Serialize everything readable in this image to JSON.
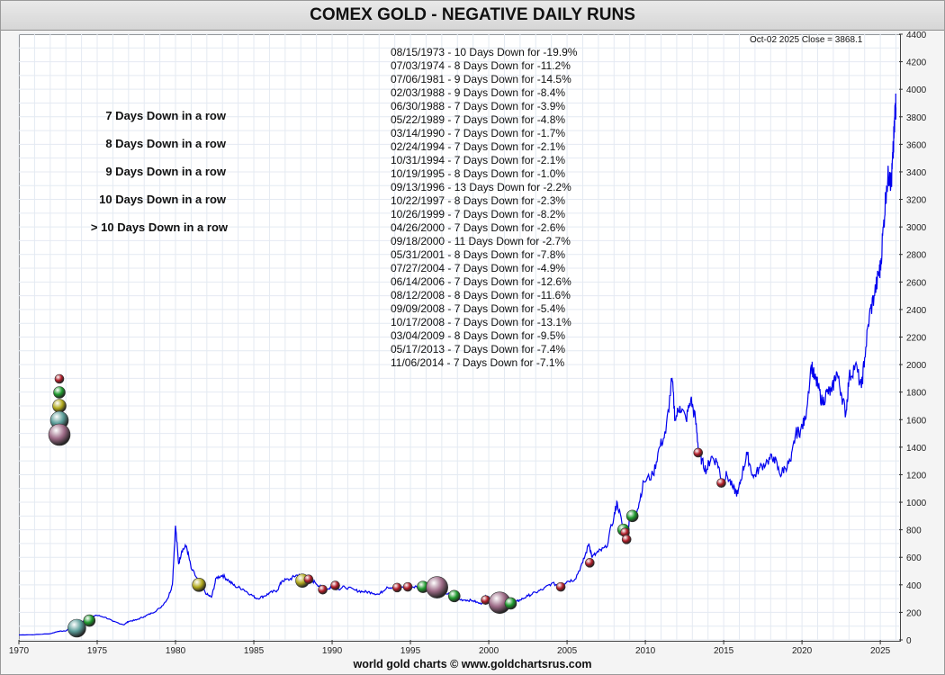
{
  "title": "COMEX GOLD - NEGATIVE DAILY RUNS",
  "close_info": "Oct-02  2025    Close = 3868.1",
  "footer": "world gold charts © www.goldchartsrus.com",
  "legend": [
    {
      "label": "7 Days Down in a row",
      "color": "#b01c28"
    },
    {
      "label": "8 Days Down in a row",
      "color": "#1f9a2e"
    },
    {
      "label": "9 Days Down in a row",
      "color": "#b0a81c"
    },
    {
      "label": "10 Days Down in a row",
      "color": "#5a9c98"
    },
    {
      "label": "> 10 Days Down in a row",
      "color": "#9c6a86"
    }
  ],
  "annotations": [
    "08/15/1973 - 10 Days Down for -19.9%",
    "07/03/1974 - 8 Days Down for -11.2%",
    "07/06/1981 - 9 Days Down for -14.5%",
    "02/03/1988 - 9 Days Down for -8.4%",
    "06/30/1988 - 7 Days Down for -3.9%",
    "05/22/1989 - 7 Days Down for -4.8%",
    "03/14/1990 - 7 Days Down for -1.7%",
    "02/24/1994 - 7 Days Down for -2.1%",
    "10/31/1994 - 7 Days Down for -2.1%",
    "10/19/1995 - 8 Days Down for -1.0%",
    "09/13/1996 - 13 Days Down for -2.2%",
    "10/22/1997 - 8 Days Down for -2.3%",
    "10/26/1999 - 7 Days Down for -8.2%",
    "04/26/2000 - 7 Days Down for -2.6%",
    "09/18/2000 - 11 Days Down for -2.7%",
    "05/31/2001 - 8 Days Down for -7.8%",
    "07/27/2004 - 7 Days Down for -4.9%",
    "06/14/2006 - 7 Days Down for -12.6%",
    "08/12/2008 - 8 Days Down for -11.6%",
    "09/09/2008 - 7 Days Down for -5.4%",
    "10/17/2008 - 7 Days Down for -13.1%",
    "03/04/2009 - 8 Days Down for -9.5%",
    "05/17/2013 - 7 Days Down for -7.4%",
    "11/06/2014 - 7 Days Down for -7.1%"
  ],
  "chart_data": {
    "type": "line",
    "title": "COMEX GOLD - NEGATIVE DAILY RUNS",
    "line_color": "#0000ee",
    "xlim": [
      1970,
      2026.2
    ],
    "ylim": [
      0,
      4400
    ],
    "x_ticks": [
      1970,
      1975,
      1980,
      1985,
      1990,
      1995,
      2000,
      2005,
      2010,
      2015,
      2020,
      2025
    ],
    "y_ticks": [
      0,
      200,
      400,
      600,
      800,
      1000,
      1200,
      1400,
      1600,
      1800,
      2000,
      2200,
      2400,
      2600,
      2800,
      3000,
      3200,
      3400,
      3600,
      3800,
      4000,
      4200,
      4400
    ],
    "grid": true,
    "y_axis_side": "right",
    "series": [
      {
        "values": [
          [
            1970.0,
            36
          ],
          [
            1971.0,
            38
          ],
          [
            1972.0,
            45
          ],
          [
            1972.5,
            62
          ],
          [
            1973.0,
            65
          ],
          [
            1973.5,
            110
          ],
          [
            1973.8,
            95
          ],
          [
            1974.0,
            130
          ],
          [
            1974.5,
            150
          ],
          [
            1974.9,
            180
          ],
          [
            1975.5,
            165
          ],
          [
            1976.0,
            135
          ],
          [
            1976.7,
            110
          ],
          [
            1977.0,
            135
          ],
          [
            1977.5,
            145
          ],
          [
            1978.0,
            170
          ],
          [
            1978.5,
            195
          ],
          [
            1979.0,
            230
          ],
          [
            1979.5,
            300
          ],
          [
            1979.8,
            400
          ],
          [
            1980.0,
            830
          ],
          [
            1980.2,
            550
          ],
          [
            1980.4,
            650
          ],
          [
            1980.7,
            680
          ],
          [
            1981.0,
            520
          ],
          [
            1981.5,
            420
          ],
          [
            1982.0,
            330
          ],
          [
            1982.3,
            310
          ],
          [
            1982.6,
            450
          ],
          [
            1983.0,
            470
          ],
          [
            1983.4,
            430
          ],
          [
            1983.8,
            390
          ],
          [
            1984.3,
            370
          ],
          [
            1984.8,
            330
          ],
          [
            1985.2,
            300
          ],
          [
            1985.7,
            320
          ],
          [
            1986.0,
            340
          ],
          [
            1986.5,
            360
          ],
          [
            1986.8,
            430
          ],
          [
            1987.3,
            440
          ],
          [
            1987.7,
            470
          ],
          [
            1988.0,
            465
          ],
          [
            1988.5,
            440
          ],
          [
            1988.9,
            420
          ],
          [
            1989.3,
            380
          ],
          [
            1989.8,
            370
          ],
          [
            1990.0,
            400
          ],
          [
            1990.4,
            370
          ],
          [
            1990.8,
            385
          ],
          [
            1991.5,
            360
          ],
          [
            1992.0,
            350
          ],
          [
            1992.5,
            345
          ],
          [
            1993.0,
            330
          ],
          [
            1993.5,
            385
          ],
          [
            1994.0,
            380
          ],
          [
            1994.5,
            385
          ],
          [
            1995.0,
            385
          ],
          [
            1995.5,
            385
          ],
          [
            1996.0,
            400
          ],
          [
            1996.5,
            385
          ],
          [
            1997.0,
            350
          ],
          [
            1997.5,
            330
          ],
          [
            1998.0,
            295
          ],
          [
            1998.5,
            290
          ],
          [
            1999.0,
            285
          ],
          [
            1999.5,
            260
          ],
          [
            1999.8,
            320
          ],
          [
            2000.2,
            285
          ],
          [
            2000.8,
            270
          ],
          [
            2001.2,
            262
          ],
          [
            2001.7,
            275
          ],
          [
            2002.0,
            290
          ],
          [
            2002.5,
            320
          ],
          [
            2003.0,
            345
          ],
          [
            2003.5,
            370
          ],
          [
            2004.0,
            410
          ],
          [
            2004.6,
            395
          ],
          [
            2005.0,
            425
          ],
          [
            2005.5,
            440
          ],
          [
            2006.0,
            560
          ],
          [
            2006.4,
            700
          ],
          [
            2006.6,
            600
          ],
          [
            2007.0,
            640
          ],
          [
            2007.5,
            670
          ],
          [
            2008.0,
            900
          ],
          [
            2008.2,
            1000
          ],
          [
            2008.6,
            800
          ],
          [
            2008.8,
            720
          ],
          [
            2009.0,
            880
          ],
          [
            2009.5,
            950
          ],
          [
            2009.9,
            1150
          ],
          [
            2010.5,
            1200
          ],
          [
            2010.9,
            1400
          ],
          [
            2011.3,
            1500
          ],
          [
            2011.7,
            1900
          ],
          [
            2011.9,
            1600
          ],
          [
            2012.2,
            1700
          ],
          [
            2012.6,
            1600
          ],
          [
            2012.9,
            1750
          ],
          [
            2013.2,
            1600
          ],
          [
            2013.4,
            1380
          ],
          [
            2013.6,
            1300
          ],
          [
            2013.9,
            1230
          ],
          [
            2014.2,
            1330
          ],
          [
            2014.6,
            1290
          ],
          [
            2014.9,
            1150
          ],
          [
            2015.2,
            1200
          ],
          [
            2015.6,
            1100
          ],
          [
            2015.9,
            1060
          ],
          [
            2016.2,
            1220
          ],
          [
            2016.5,
            1350
          ],
          [
            2016.9,
            1180
          ],
          [
            2017.3,
            1250
          ],
          [
            2017.8,
            1300
          ],
          [
            2018.2,
            1330
          ],
          [
            2018.6,
            1200
          ],
          [
            2018.9,
            1250
          ],
          [
            2019.3,
            1300
          ],
          [
            2019.6,
            1500
          ],
          [
            2019.9,
            1520
          ],
          [
            2020.2,
            1600
          ],
          [
            2020.6,
            2000
          ],
          [
            2020.8,
            1900
          ],
          [
            2021.0,
            1850
          ],
          [
            2021.3,
            1720
          ],
          [
            2021.6,
            1800
          ],
          [
            2021.9,
            1800
          ],
          [
            2022.2,
            1950
          ],
          [
            2022.5,
            1800
          ],
          [
            2022.8,
            1640
          ],
          [
            2023.0,
            1900
          ],
          [
            2023.4,
            2000
          ],
          [
            2023.8,
            1830
          ],
          [
            2024.0,
            2050
          ],
          [
            2024.3,
            2350
          ],
          [
            2024.6,
            2500
          ],
          [
            2024.9,
            2650
          ],
          [
            2025.0,
            2700
          ],
          [
            2025.2,
            3000
          ],
          [
            2025.4,
            3300
          ],
          [
            2025.6,
            3400
          ],
          [
            2025.7,
            3300
          ],
          [
            2025.8,
            3500
          ],
          [
            2025.9,
            3700
          ],
          [
            2025.96,
            3900
          ],
          [
            2026.0,
            3868
          ]
        ]
      }
    ],
    "events": [
      {
        "x": 1973.7,
        "y": 85,
        "days": 10
      },
      {
        "x": 1974.5,
        "y": 140,
        "days": 8
      },
      {
        "x": 1981.5,
        "y": 400,
        "days": 9
      },
      {
        "x": 1988.1,
        "y": 430,
        "days": 9
      },
      {
        "x": 1988.5,
        "y": 440,
        "days": 7
      },
      {
        "x": 1989.4,
        "y": 365,
        "days": 7
      },
      {
        "x": 1990.2,
        "y": 395,
        "days": 7
      },
      {
        "x": 1994.15,
        "y": 380,
        "days": 7
      },
      {
        "x": 1994.83,
        "y": 385,
        "days": 7
      },
      {
        "x": 1995.8,
        "y": 385,
        "days": 8
      },
      {
        "x": 1996.7,
        "y": 382,
        "days": 13
      },
      {
        "x": 1997.8,
        "y": 318,
        "days": 8
      },
      {
        "x": 1999.8,
        "y": 290,
        "days": 7
      },
      {
        "x": 2000.3,
        "y": 280,
        "days": 7
      },
      {
        "x": 2000.7,
        "y": 270,
        "days": 11
      },
      {
        "x": 2001.4,
        "y": 265,
        "days": 8
      },
      {
        "x": 2004.6,
        "y": 385,
        "days": 7
      },
      {
        "x": 2006.45,
        "y": 560,
        "days": 7
      },
      {
        "x": 2008.6,
        "y": 800,
        "days": 8
      },
      {
        "x": 2008.7,
        "y": 780,
        "days": 7
      },
      {
        "x": 2008.8,
        "y": 730,
        "days": 7
      },
      {
        "x": 2009.17,
        "y": 900,
        "days": 8
      },
      {
        "x": 2013.37,
        "y": 1360,
        "days": 7
      },
      {
        "x": 2014.85,
        "y": 1140,
        "days": 7
      }
    ]
  }
}
